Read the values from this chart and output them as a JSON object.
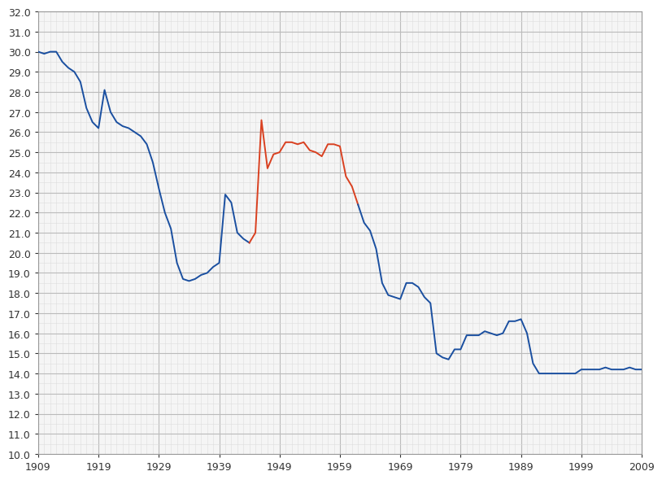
{
  "title": "",
  "xlabel": "",
  "ylabel": "",
  "xlim": [
    1909,
    2009
  ],
  "ylim": [
    10.0,
    32.0
  ],
  "yticks": [
    10.0,
    11.0,
    12.0,
    13.0,
    14.0,
    15.0,
    16.0,
    17.0,
    18.0,
    19.0,
    20.0,
    21.0,
    22.0,
    23.0,
    24.0,
    25.0,
    26.0,
    27.0,
    28.0,
    29.0,
    30.0,
    31.0,
    32.0
  ],
  "xticks": [
    1909,
    1919,
    1929,
    1939,
    1949,
    1959,
    1969,
    1979,
    1989,
    1999,
    2009
  ],
  "blue_color": "#1a4fa0",
  "orange_color": "#d94020",
  "plot_bg_color": "#f5f5f5",
  "grid_major_color": "#bbbbbb",
  "grid_minor_color": "#dddddd",
  "line_width": 1.4,
  "tick_fontsize": 9,
  "blue_data": [
    [
      1909,
      30.0
    ],
    [
      1910,
      29.9
    ],
    [
      1911,
      30.0
    ],
    [
      1912,
      30.0
    ],
    [
      1913,
      29.5
    ],
    [
      1914,
      29.2
    ],
    [
      1915,
      29.0
    ],
    [
      1916,
      28.5
    ],
    [
      1917,
      27.2
    ],
    [
      1918,
      26.5
    ],
    [
      1919,
      26.2
    ],
    [
      1920,
      28.1
    ],
    [
      1921,
      27.0
    ],
    [
      1922,
      26.5
    ],
    [
      1923,
      26.3
    ],
    [
      1924,
      26.2
    ],
    [
      1925,
      26.0
    ],
    [
      1926,
      25.8
    ],
    [
      1927,
      25.4
    ],
    [
      1928,
      24.5
    ],
    [
      1929,
      23.2
    ],
    [
      1930,
      22.0
    ],
    [
      1931,
      21.2
    ],
    [
      1932,
      19.5
    ],
    [
      1933,
      18.7
    ],
    [
      1934,
      18.6
    ],
    [
      1935,
      18.7
    ],
    [
      1936,
      18.9
    ],
    [
      1937,
      19.0
    ],
    [
      1938,
      19.3
    ],
    [
      1939,
      19.5
    ],
    [
      1940,
      22.9
    ],
    [
      1941,
      22.5
    ],
    [
      1942,
      21.0
    ],
    [
      1943,
      20.7
    ],
    [
      1944,
      20.5
    ]
  ],
  "orange_data": [
    [
      1944,
      20.5
    ],
    [
      1945,
      21.0
    ],
    [
      1946,
      26.6
    ],
    [
      1947,
      24.2
    ],
    [
      1948,
      24.9
    ],
    [
      1949,
      25.0
    ],
    [
      1950,
      25.5
    ],
    [
      1951,
      25.5
    ],
    [
      1952,
      25.4
    ],
    [
      1953,
      25.5
    ],
    [
      1954,
      25.1
    ],
    [
      1955,
      25.0
    ],
    [
      1956,
      24.8
    ],
    [
      1957,
      25.4
    ],
    [
      1958,
      25.4
    ],
    [
      1959,
      25.3
    ],
    [
      1960,
      23.8
    ],
    [
      1961,
      23.3
    ],
    [
      1962,
      22.4
    ]
  ],
  "blue_data2": [
    [
      1962,
      22.4
    ],
    [
      1963,
      21.5
    ],
    [
      1964,
      21.1
    ],
    [
      1965,
      20.2
    ],
    [
      1966,
      18.5
    ],
    [
      1967,
      17.9
    ],
    [
      1968,
      17.8
    ],
    [
      1969,
      17.7
    ],
    [
      1970,
      18.5
    ],
    [
      1971,
      18.5
    ],
    [
      1972,
      18.3
    ],
    [
      1973,
      17.8
    ],
    [
      1974,
      17.5
    ],
    [
      1975,
      15.0
    ],
    [
      1976,
      14.8
    ],
    [
      1977,
      14.7
    ],
    [
      1978,
      15.2
    ],
    [
      1979,
      15.2
    ],
    [
      1980,
      15.9
    ],
    [
      1981,
      15.9
    ],
    [
      1982,
      15.9
    ],
    [
      1983,
      16.1
    ],
    [
      1984,
      16.0
    ],
    [
      1985,
      15.9
    ],
    [
      1986,
      16.0
    ],
    [
      1987,
      16.6
    ],
    [
      1988,
      16.6
    ],
    [
      1989,
      16.7
    ],
    [
      1990,
      16.0
    ],
    [
      1991,
      14.5
    ],
    [
      1992,
      14.0
    ],
    [
      1993,
      14.0
    ],
    [
      1994,
      14.0
    ],
    [
      1995,
      14.0
    ],
    [
      1996,
      14.0
    ],
    [
      1997,
      14.0
    ],
    [
      1998,
      14.0
    ],
    [
      1999,
      14.2
    ],
    [
      2000,
      14.2
    ],
    [
      2001,
      14.2
    ],
    [
      2002,
      14.2
    ],
    [
      2003,
      14.3
    ],
    [
      2004,
      14.2
    ],
    [
      2005,
      14.2
    ],
    [
      2006,
      14.2
    ],
    [
      2007,
      14.3
    ],
    [
      2008,
      14.2
    ],
    [
      2009,
      14.2
    ]
  ]
}
